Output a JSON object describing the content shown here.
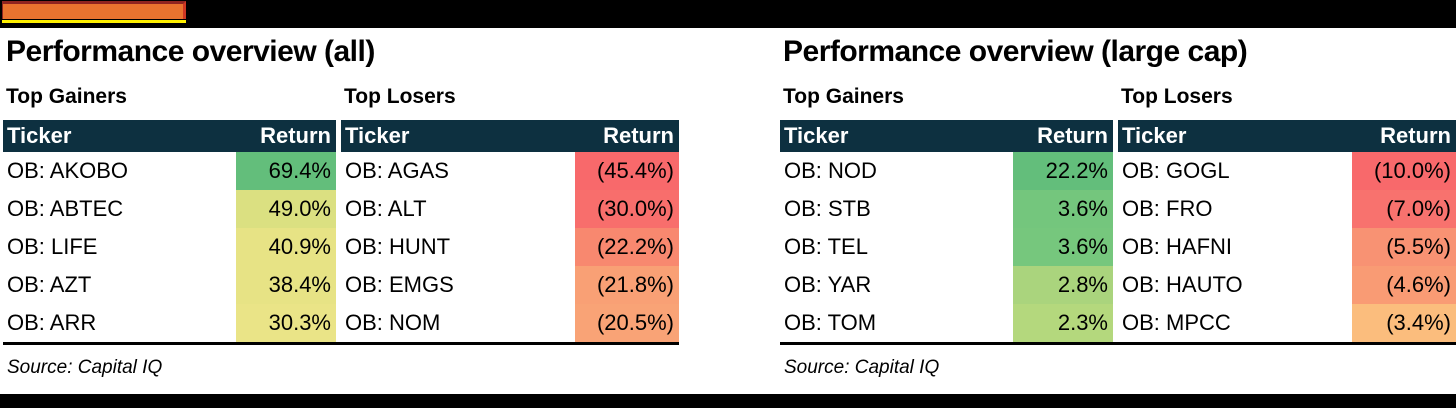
{
  "decor": {
    "tab_bar_color": "#E9732F",
    "tab_border_top": "#8F2420",
    "tab_border_right": "#CE3723",
    "underline_color": "#FFF000"
  },
  "theme": {
    "page_bg": "#000000",
    "panel_bg": "#FFFFFF",
    "table_header_bg": "#0D3040",
    "table_header_text": "#FFFFFF",
    "best_green": "#63BE7B",
    "worst_red": "#F8696B"
  },
  "sections": [
    {
      "title": "Performance overview (all)",
      "source": "Source: Capital IQ",
      "tables": [
        {
          "subtitle": "Top Gainers",
          "headers": {
            "ticker": "Ticker",
            "return": "Return"
          },
          "rows": [
            {
              "ticker": "OB: AKOBO",
              "return": "69.4%",
              "bg": "#63BE7B"
            },
            {
              "ticker": "OB: ABTEC",
              "return": "49.0%",
              "bg": "#DBE081"
            },
            {
              "ticker": "OB: LIFE",
              "return": "40.9%",
              "bg": "#E7E385"
            },
            {
              "ticker": "OB: AZT",
              "return": "38.4%",
              "bg": "#E7E385"
            },
            {
              "ticker": "OB: ARR",
              "return": "30.3%",
              "bg": "#EAE487"
            }
          ]
        },
        {
          "subtitle": "Top Losers",
          "headers": {
            "ticker": "Ticker",
            "return": "Return"
          },
          "rows": [
            {
              "ticker": "OB: AGAS",
              "return": "(45.4%)",
              "bg": "#F8696B"
            },
            {
              "ticker": "OB: ALT",
              "return": "(30.0%)",
              "bg": "#F86E6C"
            },
            {
              "ticker": "OB: HUNT",
              "return": "(22.2%)",
              "bg": "#F8886F"
            },
            {
              "ticker": "OB: EMGS",
              "return": "(21.8%)",
              "bg": "#F9A075"
            },
            {
              "ticker": "OB: NOM",
              "return": "(20.5%)",
              "bg": "#F9A376"
            }
          ]
        }
      ]
    },
    {
      "title": "Performance overview (large cap)",
      "source": "Source: Capital IQ",
      "tables": [
        {
          "subtitle": "Top Gainers",
          "headers": {
            "ticker": "Ticker",
            "return": "Return"
          },
          "rows": [
            {
              "ticker": "OB: NOD",
              "return": "22.2%",
              "bg": "#63BE7B"
            },
            {
              "ticker": "OB: STB",
              "return": "3.6%",
              "bg": "#74C67D"
            },
            {
              "ticker": "OB: TEL",
              "return": "3.6%",
              "bg": "#76C77D"
            },
            {
              "ticker": "OB: YAR",
              "return": "2.8%",
              "bg": "#AAD47D"
            },
            {
              "ticker": "OB: TOM",
              "return": "2.3%",
              "bg": "#B4D87D"
            }
          ]
        },
        {
          "subtitle": "Top Losers",
          "headers": {
            "ticker": "Ticker",
            "return": "Return"
          },
          "rows": [
            {
              "ticker": "OB: GOGL",
              "return": "(10.0%)",
              "bg": "#F8696B"
            },
            {
              "ticker": "OB: FRO",
              "return": "(7.0%)",
              "bg": "#F8726E"
            },
            {
              "ticker": "OB: HAFNI",
              "return": "(5.5%)",
              "bg": "#F89273"
            },
            {
              "ticker": "OB: HAUTO",
              "return": "(4.6%)",
              "bg": "#F99B74"
            },
            {
              "ticker": "OB: MPCC",
              "return": "(3.4%)",
              "bg": "#FBBD7D"
            }
          ]
        }
      ]
    }
  ],
  "chart_data": [
    {
      "type": "table",
      "title": "Performance overview (all)",
      "groups": [
        {
          "name": "Top Gainers",
          "columns": [
            "Ticker",
            "Return"
          ],
          "tickers": [
            "OB: AKOBO",
            "OB: ABTEC",
            "OB: LIFE",
            "OB: AZT",
            "OB: ARR"
          ],
          "returns_pct": [
            69.4,
            49.0,
            40.9,
            38.4,
            30.3
          ]
        },
        {
          "name": "Top Losers",
          "columns": [
            "Ticker",
            "Return"
          ],
          "tickers": [
            "OB: AGAS",
            "OB: ALT",
            "OB: HUNT",
            "OB: EMGS",
            "OB: NOM"
          ],
          "returns_pct": [
            -45.4,
            -30.0,
            -22.2,
            -21.8,
            -20.5
          ]
        }
      ],
      "source": "Source: Capital IQ",
      "color_scale": "red-yellow-green conditional formatting on Return column"
    },
    {
      "type": "table",
      "title": "Performance overview (large cap)",
      "groups": [
        {
          "name": "Top Gainers",
          "columns": [
            "Ticker",
            "Return"
          ],
          "tickers": [
            "OB: NOD",
            "OB: STB",
            "OB: TEL",
            "OB: YAR",
            "OB: TOM"
          ],
          "returns_pct": [
            22.2,
            3.6,
            3.6,
            2.8,
            2.3
          ]
        },
        {
          "name": "Top Losers",
          "columns": [
            "Ticker",
            "Return"
          ],
          "tickers": [
            "OB: GOGL",
            "OB: FRO",
            "OB: HAFNI",
            "OB: HAUTO",
            "OB: MPCC"
          ],
          "returns_pct": [
            -10.0,
            -7.0,
            -5.5,
            -4.6,
            -3.4
          ]
        }
      ],
      "source": "Source: Capital IQ",
      "color_scale": "red-yellow-green conditional formatting on Return column"
    }
  ]
}
